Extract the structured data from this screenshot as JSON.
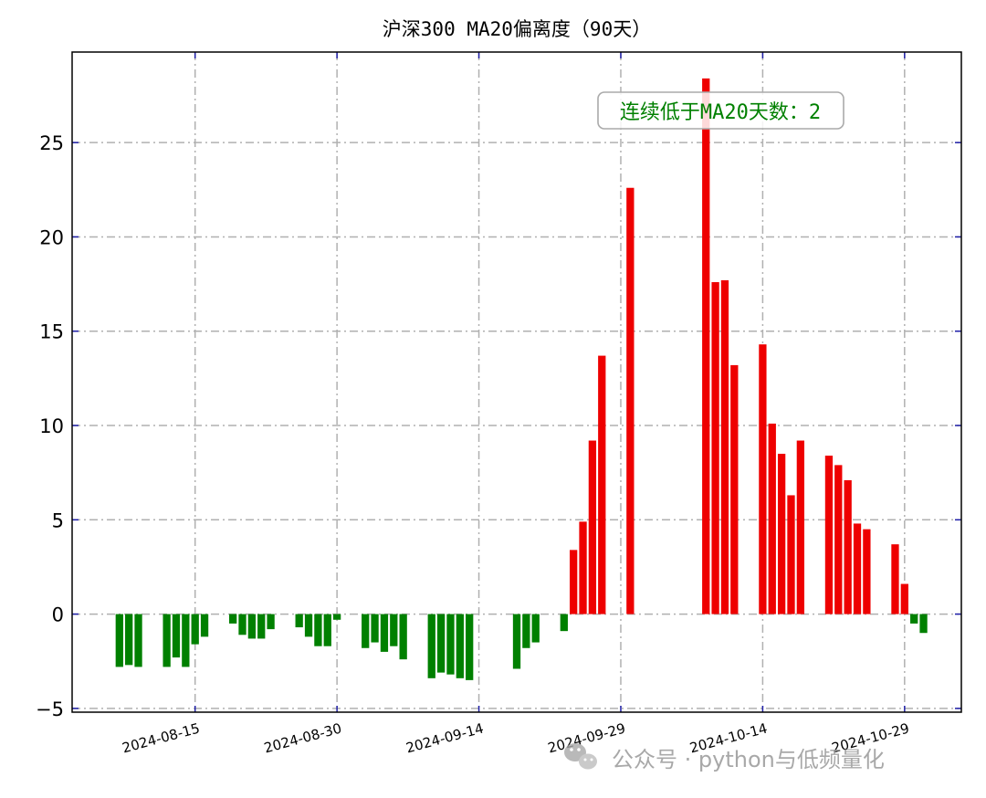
{
  "chart_data": {
    "type": "bar",
    "title": "沪深300 MA20偏离度（90天）",
    "xlabel": "",
    "ylabel": "",
    "ylim": [
      -5.2,
      29.8
    ],
    "yticks": [
      -5,
      0,
      5,
      10,
      15,
      20,
      25
    ],
    "ytick_labels": [
      "−5",
      "0",
      "5",
      "10",
      "15",
      "20",
      "25"
    ],
    "xlim": [
      "2024-08-02",
      "2024-11-04"
    ],
    "xticks": [
      "2024-08-15",
      "2024-08-30",
      "2024-09-14",
      "2024-09-29",
      "2024-10-14",
      "2024-10-29"
    ],
    "grid": true,
    "positive_color": "#ee0000",
    "negative_color": "#008000",
    "annotation": "连续低于MA20天数：2",
    "x": [
      "2024-08-07",
      "2024-08-08",
      "2024-08-09",
      "2024-08-12",
      "2024-08-13",
      "2024-08-14",
      "2024-08-15",
      "2024-08-16",
      "2024-08-19",
      "2024-08-20",
      "2024-08-21",
      "2024-08-22",
      "2024-08-23",
      "2024-08-26",
      "2024-08-27",
      "2024-08-28",
      "2024-08-29",
      "2024-08-30",
      "2024-09-02",
      "2024-09-03",
      "2024-09-04",
      "2024-09-05",
      "2024-09-06",
      "2024-09-09",
      "2024-09-10",
      "2024-09-11",
      "2024-09-12",
      "2024-09-13",
      "2024-09-18",
      "2024-09-19",
      "2024-09-20",
      "2024-09-23",
      "2024-09-24",
      "2024-09-25",
      "2024-09-26",
      "2024-09-27",
      "2024-09-30",
      "2024-10-08",
      "2024-10-09",
      "2024-10-10",
      "2024-10-11",
      "2024-10-14",
      "2024-10-15",
      "2024-10-16",
      "2024-10-17",
      "2024-10-18",
      "2024-10-21",
      "2024-10-22",
      "2024-10-23",
      "2024-10-24",
      "2024-10-25",
      "2024-10-28",
      "2024-10-29",
      "2024-10-30",
      "2024-10-31"
    ],
    "values": [
      -2.8,
      -2.7,
      -2.8,
      -2.8,
      -2.3,
      -2.8,
      -1.6,
      -1.2,
      -0.5,
      -1.1,
      -1.3,
      -1.3,
      -0.8,
      -0.7,
      -1.2,
      -1.7,
      -1.7,
      -0.3,
      -1.8,
      -1.5,
      -2.0,
      -1.7,
      -2.4,
      -3.4,
      -3.1,
      -3.2,
      -3.4,
      -3.5,
      -2.9,
      -1.8,
      -1.5,
      -0.9,
      3.4,
      4.9,
      9.2,
      13.7,
      22.6,
      28.4,
      17.6,
      17.7,
      13.2,
      14.3,
      10.1,
      8.5,
      6.3,
      9.2,
      8.4,
      7.9,
      7.1,
      4.8,
      4.5,
      3.7,
      1.6,
      -0.5,
      -1.0
    ]
  },
  "watermark": {
    "icon": "wechat-icon",
    "text": "公众号 · python与低频量化"
  }
}
